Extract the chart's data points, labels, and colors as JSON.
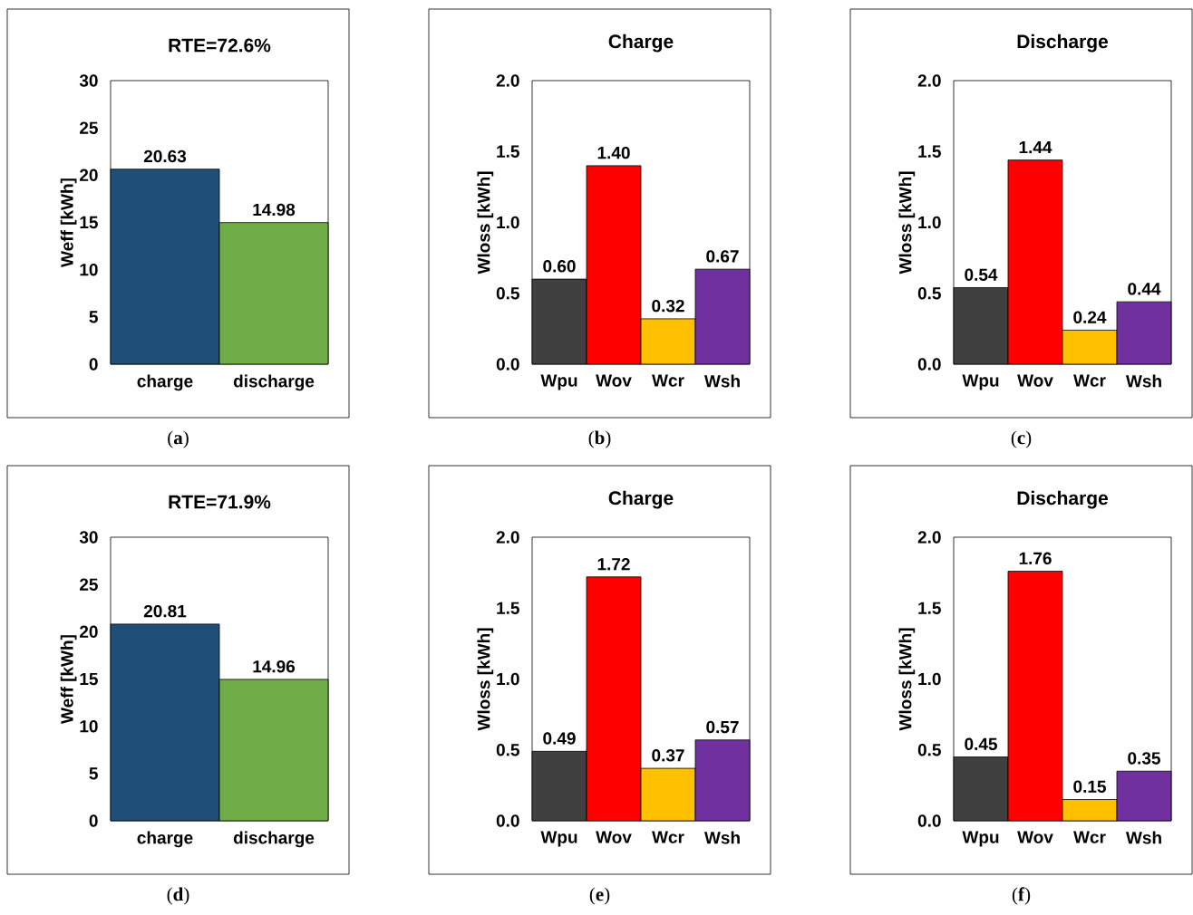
{
  "chart_data": [
    {
      "type": "bar",
      "title": "RTE=72.6%",
      "ylabel": "Weff [kWh]",
      "categories": [
        "charge",
        "discharge"
      ],
      "values": [
        20.63,
        14.98
      ],
      "colors": [
        "#1f4e79",
        "#70ad47"
      ],
      "value_labels": [
        "20.63",
        "14.98"
      ],
      "ylim": [
        0,
        30
      ],
      "yticks": [
        0,
        5,
        10,
        15,
        20,
        25,
        30
      ],
      "annotations": [
        "(**a**)"
      ]
    },
    {
      "type": "bar",
      "title": "Charge",
      "ylabel": "Wloss [kWh]",
      "categories": [
        "Wpu",
        "Wov",
        "Wcr",
        "Wsh"
      ],
      "values": [
        0.6,
        1.4,
        0.32,
        0.67
      ],
      "colors": [
        "#404040",
        "#ff0000",
        "#ffc000",
        "#7030a0"
      ],
      "value_labels": [
        "0.60",
        "1.40",
        "0.32",
        "0.67"
      ],
      "ylim": [
        0,
        2
      ],
      "yticks": [
        {
          "value": 0,
          "label": "0.0"
        },
        {
          "value": 0.5,
          "label": "0.5"
        },
        {
          "value": 1,
          "label": "1.0"
        },
        {
          "value": 1.5,
          "label": "1.5"
        },
        {
          "value": 2,
          "label": "2.0"
        }
      ],
      "annotations": [
        "(**b**)"
      ]
    },
    {
      "type": "bar",
      "title": "Discharge",
      "ylabel": "Wloss [kWh]",
      "categories": [
        "Wpu",
        "Wov",
        "Wcr",
        "Wsh"
      ],
      "values": [
        0.54,
        1.44,
        0.24,
        0.44
      ],
      "colors": [
        "#404040",
        "#ff0000",
        "#ffc000",
        "#7030a0"
      ],
      "value_labels": [
        "0.54",
        "1.44",
        "0.24",
        "0.44"
      ],
      "ylim": [
        0,
        2
      ],
      "yticks": [
        {
          "value": 0,
          "label": "0.0"
        },
        {
          "value": 0.5,
          "label": "0.5"
        },
        {
          "value": 1,
          "label": "1.0"
        },
        {
          "value": 1.5,
          "label": "1.5"
        },
        {
          "value": 2,
          "label": "2.0"
        }
      ],
      "annotations": [
        "(**c**)"
      ]
    },
    {
      "type": "bar",
      "title": "RTE=71.9%",
      "ylabel": "Weff [kWh]",
      "categories": [
        "charge",
        "discharge"
      ],
      "values": [
        20.81,
        14.96
      ],
      "colors": [
        "#1f4e79",
        "#70ad47"
      ],
      "value_labels": [
        "20.81",
        "14.96"
      ],
      "ylim": [
        0,
        30
      ],
      "yticks": [
        0,
        5,
        10,
        15,
        20,
        25,
        30
      ],
      "annotations": [
        "(**d**)"
      ]
    },
    {
      "type": "bar",
      "title": "Charge",
      "ylabel": "Wloss [kWh]",
      "categories": [
        "Wpu",
        "Wov",
        "Wcr",
        "Wsh"
      ],
      "values": [
        0.49,
        1.72,
        0.37,
        0.57
      ],
      "colors": [
        "#404040",
        "#ff0000",
        "#ffc000",
        "#7030a0"
      ],
      "value_labels": [
        "0.49",
        "1.72",
        "0.37",
        "0.57"
      ],
      "ylim": [
        0,
        2
      ],
      "yticks": [
        {
          "value": 0,
          "label": "0.0"
        },
        {
          "value": 0.5,
          "label": "0.5"
        },
        {
          "value": 1,
          "label": "1.0"
        },
        {
          "value": 1.5,
          "label": "1.5"
        },
        {
          "value": 2,
          "label": "2.0"
        }
      ],
      "annotations": [
        "(**e**)"
      ]
    },
    {
      "type": "bar",
      "title": "Discharge",
      "ylabel": "Wloss [kWh]",
      "categories": [
        "Wpu",
        "Wov",
        "Wcr",
        "Wsh"
      ],
      "values": [
        0.45,
        1.76,
        0.15,
        0.35
      ],
      "colors": [
        "#404040",
        "#ff0000",
        "#ffc000",
        "#7030a0"
      ],
      "value_labels": [
        "0.45",
        "1.76",
        "0.15",
        "0.35"
      ],
      "ylim": [
        0,
        2
      ],
      "yticks": [
        {
          "value": 0,
          "label": "0.0"
        },
        {
          "value": 0.5,
          "label": "0.5"
        },
        {
          "value": 1,
          "label": "1.0"
        },
        {
          "value": 1.5,
          "label": "1.5"
        },
        {
          "value": 2,
          "label": "2.0"
        }
      ],
      "annotations": [
        "(**f**)"
      ]
    }
  ]
}
